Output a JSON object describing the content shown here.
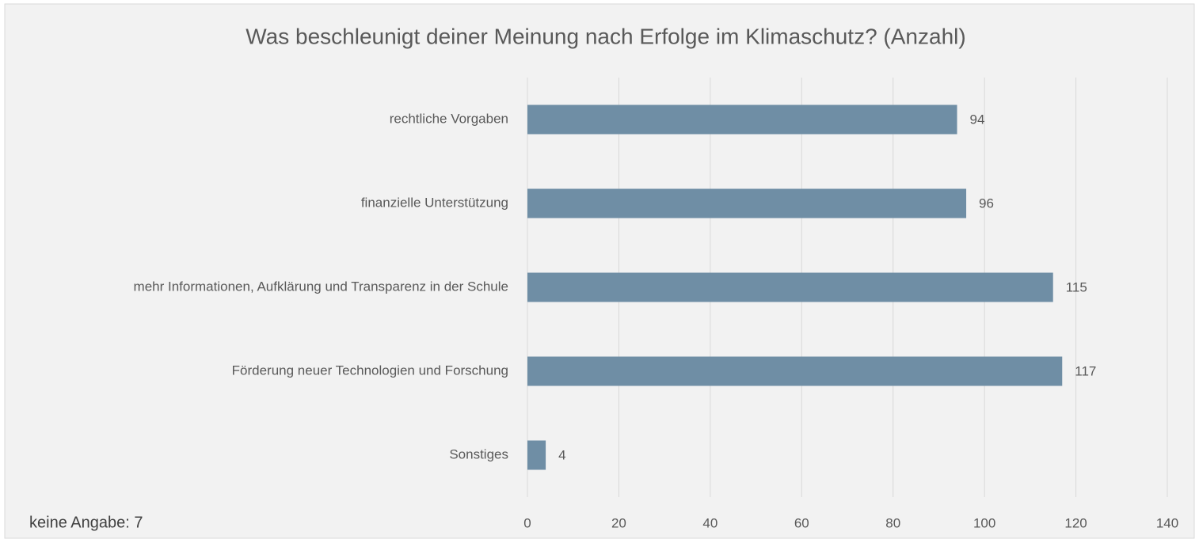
{
  "chart_data": {
    "type": "bar",
    "orientation": "horizontal",
    "title": "Was beschleunigt deiner Meinung nach Erfolge im Klimaschutz? (Anzahl)",
    "note": "keine Angabe: 7",
    "categories": [
      "rechtliche Vorgaben",
      "finanzielle Unterstützung",
      "mehr Informationen, Aufklärung und Transparenz in der Schule",
      "Förderung neuer Technologien und Forschung",
      "Sonstiges"
    ],
    "values": [
      94,
      96,
      115,
      117,
      4
    ],
    "color": "#6f8ea5",
    "xlim": [
      0,
      140
    ],
    "xticks": [
      0,
      20,
      40,
      60,
      80,
      100,
      120,
      140
    ],
    "grid": true
  }
}
